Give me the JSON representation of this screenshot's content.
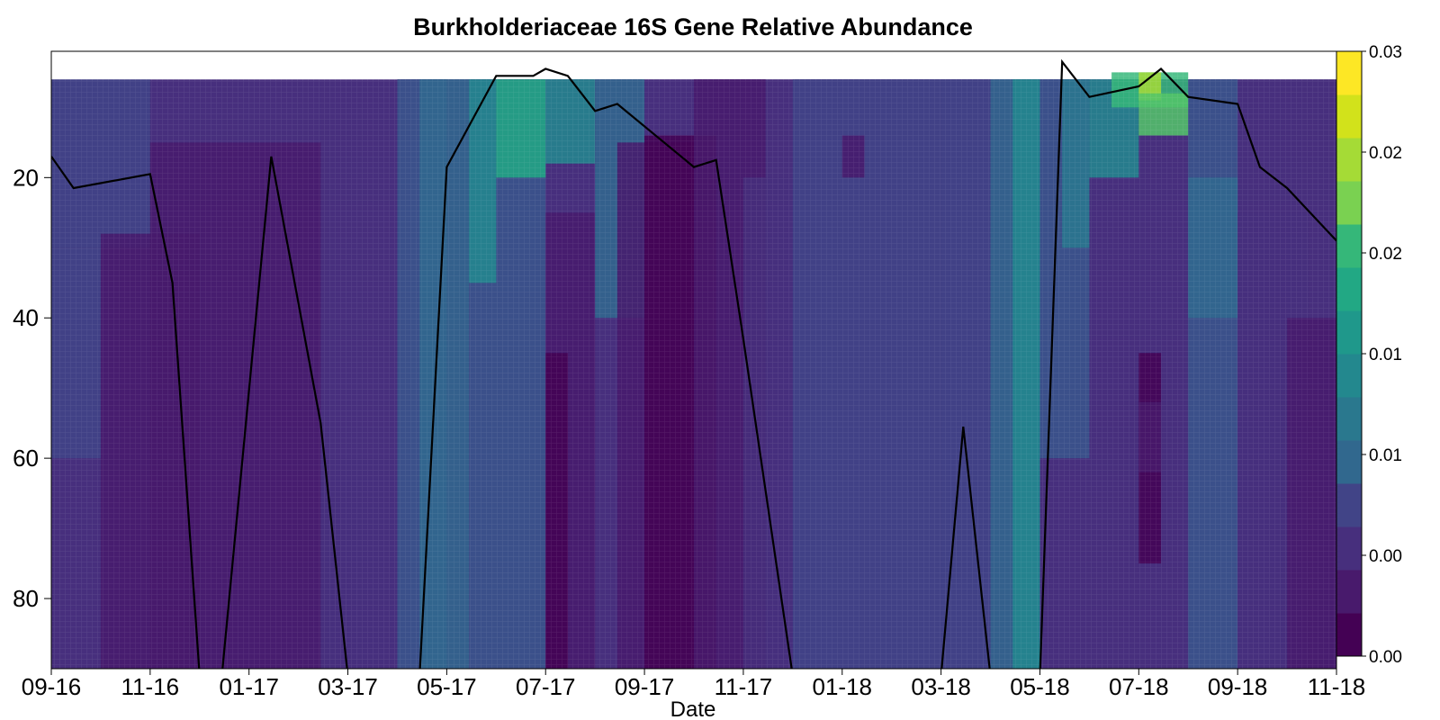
{
  "chart_data": {
    "type": "heatmap",
    "title": "Burkholderiaceae 16S Gene Relative Abundance",
    "xlabel": "Date",
    "ylabel": "",
    "x_tick_labels": [
      "09-16",
      "11-16",
      "01-17",
      "03-17",
      "05-17",
      "07-17",
      "09-17",
      "11-17",
      "01-18",
      "03-18",
      "05-18",
      "07-18",
      "09-18",
      "11-18"
    ],
    "y_ticks": [
      20,
      40,
      60,
      80
    ],
    "y_tick_labels": [
      "20",
      "40",
      "60",
      "80"
    ],
    "y_range": [
      90,
      2
    ],
    "y_reversed": true,
    "colorbar": {
      "position": "right",
      "range": [
        0.0,
        0.03
      ],
      "tick_labels": [
        "0.03",
        "0.02",
        "0.02",
        "0.01",
        "0.01",
        "0.00",
        "0.00"
      ],
      "levels": 14,
      "colors": [
        "#440154",
        "#481a6c",
        "#472f7d",
        "#414487",
        "#39568c",
        "#31688e",
        "#2a788e",
        "#23888e",
        "#1f988b",
        "#22a884",
        "#35b779",
        "#54c568",
        "#7ad151",
        "#a5db36",
        "#d2e21b",
        "#fde725"
      ]
    },
    "overlay_line": {
      "color": "#000000",
      "points": [
        [
          "09-16",
          17
        ],
        [
          "09-16+",
          21.5
        ],
        [
          "11-16",
          19.5
        ],
        [
          "11-16+",
          35
        ],
        [
          "12-16",
          91
        ],
        [
          "12-16+",
          91
        ],
        [
          "01-17+",
          17
        ],
        [
          "02-17+",
          55
        ],
        [
          "03-17",
          91
        ],
        [
          "04-17+",
          91
        ],
        [
          "05-17",
          18.5
        ],
        [
          "06-17",
          5.5
        ],
        [
          "07-17-",
          5.5
        ],
        [
          "07-17",
          4.5
        ],
        [
          "07-17+",
          5.5
        ],
        [
          "08-17",
          10.5
        ],
        [
          "08-17+",
          9.5
        ],
        [
          "10-17",
          18.5
        ],
        [
          "10-17+",
          17.5
        ],
        [
          "11-17",
          43
        ],
        [
          "12-17",
          91
        ],
        [
          "03-18",
          91
        ],
        [
          "03-18+",
          55.5
        ],
        [
          "04-18",
          91
        ],
        [
          "05-18",
          91
        ],
        [
          "05-18+",
          3.5
        ],
        [
          "06-18",
          8.5
        ],
        [
          "07-18",
          7
        ],
        [
          "07-18+",
          4.5
        ],
        [
          "08-18",
          8.5
        ],
        [
          "09-18",
          9.5
        ],
        [
          "09-18+",
          18.5
        ],
        [
          "10-18",
          21.5
        ],
        [
          "11-18",
          29
        ]
      ]
    }
  }
}
